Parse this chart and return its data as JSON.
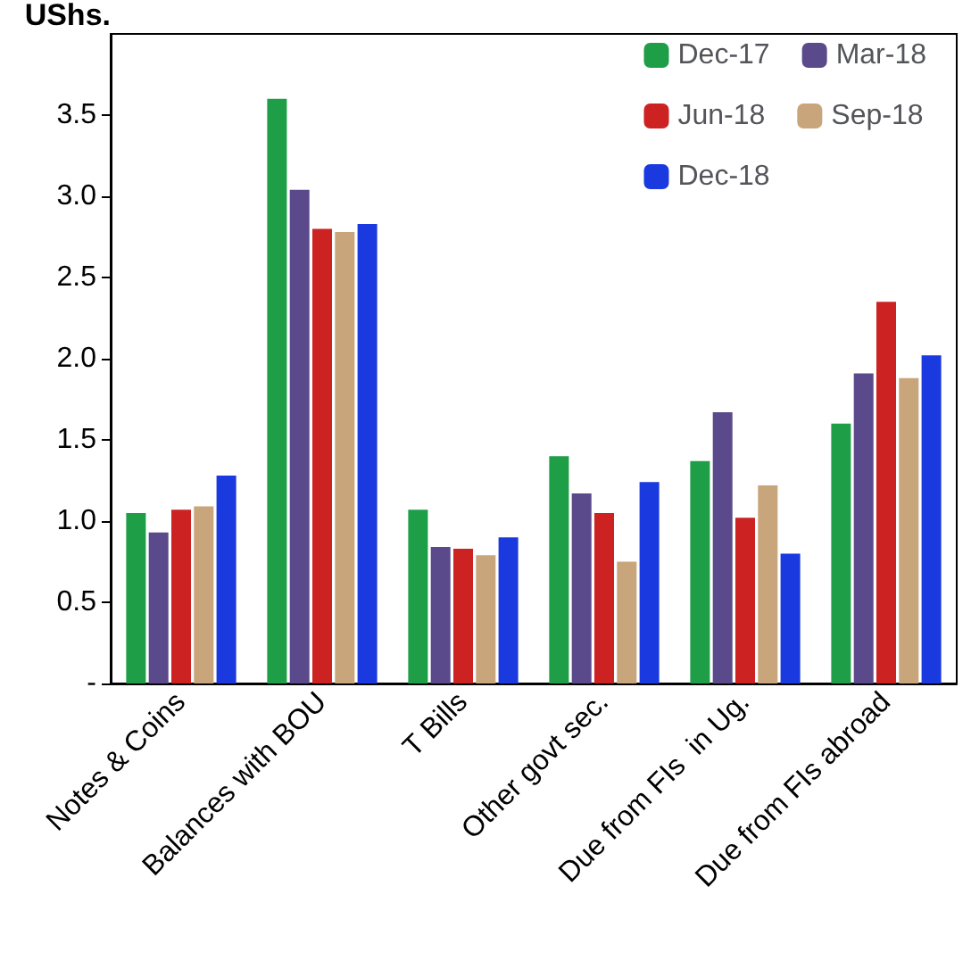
{
  "chart_data": {
    "type": "bar",
    "ylabel": "UShs.",
    "categories": [
      "Notes & Coins",
      "Balances with BOU",
      "T Bills",
      "Other govt sec.",
      "Due from FIs  in Ug.",
      "Due from FIs abroad"
    ],
    "series": [
      {
        "name": "Dec-17",
        "color": "#1f9e48",
        "values": [
          1.05,
          3.6,
          1.07,
          1.4,
          1.37,
          1.6
        ]
      },
      {
        "name": "Mar-18",
        "color": "#5b4a8b",
        "values": [
          0.93,
          3.04,
          0.84,
          1.17,
          1.67,
          1.91
        ]
      },
      {
        "name": "Jun-18",
        "color": "#cc2222",
        "values": [
          1.07,
          2.8,
          0.83,
          1.05,
          1.02,
          2.35
        ]
      },
      {
        "name": "Sep-18",
        "color": "#c9a57c",
        "values": [
          1.09,
          2.78,
          0.79,
          0.75,
          1.22,
          1.88
        ]
      },
      {
        "name": "Dec-18",
        "color": "#1a3adf",
        "values": [
          1.28,
          2.83,
          0.9,
          1.24,
          0.8,
          2.02
        ]
      }
    ],
    "ylim": [
      0,
      4
    ],
    "yticks": [
      {
        "value": 0,
        "label": "-"
      },
      0.5,
      {
        "value": 1,
        "label": "1.0"
      },
      1.5,
      {
        "value": 2,
        "label": "2.0"
      },
      2.5,
      {
        "value": 3,
        "label": "3.0"
      },
      3.5
    ],
    "grid": false,
    "legend": "top right"
  }
}
